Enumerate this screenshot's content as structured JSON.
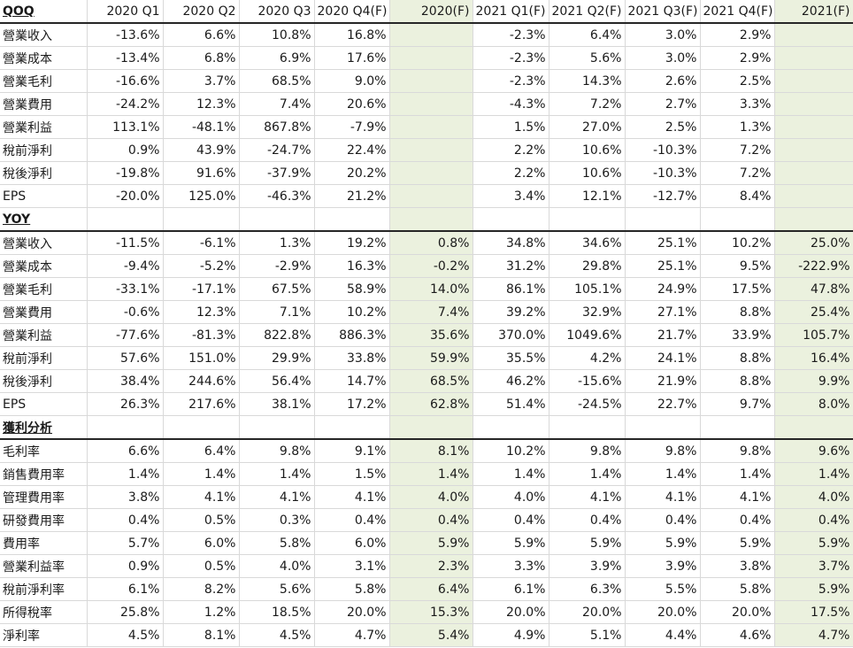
{
  "headers": [
    "QOQ",
    "2020 Q1",
    "2020 Q2",
    "2020 Q3",
    "2020 Q4(F)",
    "2020(F)",
    "2021 Q1(F)",
    "2021 Q2(F)",
    "2021 Q3(F)",
    "2021 Q4(F)",
    "2021(F)"
  ],
  "highlight_color": "#ebf1de",
  "sections": [
    {
      "rows": [
        {
          "label": "營業收入",
          "values": [
            "-13.6%",
            "6.6%",
            "10.8%",
            "16.8%",
            "",
            "-2.3%",
            "6.4%",
            "3.0%",
            "2.9%",
            ""
          ]
        },
        {
          "label": "營業成本",
          "values": [
            "-13.4%",
            "6.8%",
            "6.9%",
            "17.6%",
            "",
            "-2.3%",
            "5.6%",
            "3.0%",
            "2.9%",
            ""
          ]
        },
        {
          "label": "營業毛利",
          "values": [
            "-16.6%",
            "3.7%",
            "68.5%",
            "9.0%",
            "",
            "-2.3%",
            "14.3%",
            "2.6%",
            "2.5%",
            ""
          ]
        },
        {
          "label": "營業費用",
          "values": [
            "-24.2%",
            "12.3%",
            "7.4%",
            "20.6%",
            "",
            "-4.3%",
            "7.2%",
            "2.7%",
            "3.3%",
            ""
          ]
        },
        {
          "label": "營業利益",
          "values": [
            "113.1%",
            "-48.1%",
            "867.8%",
            "-7.9%",
            "",
            "1.5%",
            "27.0%",
            "2.5%",
            "1.3%",
            ""
          ]
        },
        {
          "label": "稅前淨利",
          "values": [
            "0.9%",
            "43.9%",
            "-24.7%",
            "22.4%",
            "",
            "2.2%",
            "10.6%",
            "-10.3%",
            "7.2%",
            ""
          ]
        },
        {
          "label": "稅後淨利",
          "values": [
            "-19.8%",
            "91.6%",
            "-37.9%",
            "20.2%",
            "",
            "2.2%",
            "10.6%",
            "-10.3%",
            "7.2%",
            ""
          ]
        },
        {
          "label": "EPS",
          "values": [
            "-20.0%",
            "125.0%",
            "-46.3%",
            "21.2%",
            "",
            "3.4%",
            "12.1%",
            "-12.7%",
            "8.4%",
            ""
          ]
        }
      ]
    },
    {
      "title": "YOY",
      "rows": [
        {
          "label": "營業收入",
          "values": [
            "-11.5%",
            "-6.1%",
            "1.3%",
            "19.2%",
            "0.8%",
            "34.8%",
            "34.6%",
            "25.1%",
            "10.2%",
            "25.0%"
          ]
        },
        {
          "label": "營業成本",
          "values": [
            "-9.4%",
            "-5.2%",
            "-2.9%",
            "16.3%",
            "-0.2%",
            "31.2%",
            "29.8%",
            "25.1%",
            "9.5%",
            "-222.9%"
          ]
        },
        {
          "label": "營業毛利",
          "values": [
            "-33.1%",
            "-17.1%",
            "67.5%",
            "58.9%",
            "14.0%",
            "86.1%",
            "105.1%",
            "24.9%",
            "17.5%",
            "47.8%"
          ]
        },
        {
          "label": "營業費用",
          "values": [
            "-0.6%",
            "12.3%",
            "7.1%",
            "10.2%",
            "7.4%",
            "39.2%",
            "32.9%",
            "27.1%",
            "8.8%",
            "25.4%"
          ]
        },
        {
          "label": "營業利益",
          "values": [
            "-77.6%",
            "-81.3%",
            "822.8%",
            "886.3%",
            "35.6%",
            "370.0%",
            "1049.6%",
            "21.7%",
            "33.9%",
            "105.7%"
          ]
        },
        {
          "label": "稅前淨利",
          "values": [
            "57.6%",
            "151.0%",
            "29.9%",
            "33.8%",
            "59.9%",
            "35.5%",
            "4.2%",
            "24.1%",
            "8.8%",
            "16.4%"
          ]
        },
        {
          "label": "稅後淨利",
          "values": [
            "38.4%",
            "244.6%",
            "56.4%",
            "14.7%",
            "68.5%",
            "46.2%",
            "-15.6%",
            "21.9%",
            "8.8%",
            "9.9%"
          ]
        },
        {
          "label": "EPS",
          "values": [
            "26.3%",
            "217.6%",
            "38.1%",
            "17.2%",
            "62.8%",
            "51.4%",
            "-24.5%",
            "22.7%",
            "9.7%",
            "8.0%"
          ]
        }
      ]
    },
    {
      "title": "獲利分析",
      "rows": [
        {
          "label": "毛利率",
          "values": [
            "6.6%",
            "6.4%",
            "9.8%",
            "9.1%",
            "8.1%",
            "10.2%",
            "9.8%",
            "9.8%",
            "9.8%",
            "9.6%"
          ]
        },
        {
          "label": "銷售費用率",
          "values": [
            "1.4%",
            "1.4%",
            "1.4%",
            "1.5%",
            "1.4%",
            "1.4%",
            "1.4%",
            "1.4%",
            "1.4%",
            "1.4%"
          ]
        },
        {
          "label": "管理費用率",
          "values": [
            "3.8%",
            "4.1%",
            "4.1%",
            "4.1%",
            "4.0%",
            "4.0%",
            "4.1%",
            "4.1%",
            "4.1%",
            "4.0%"
          ]
        },
        {
          "label": "研發費用率",
          "values": [
            "0.4%",
            "0.5%",
            "0.3%",
            "0.4%",
            "0.4%",
            "0.4%",
            "0.4%",
            "0.4%",
            "0.4%",
            "0.4%"
          ]
        },
        {
          "label": "費用率",
          "values": [
            "5.7%",
            "6.0%",
            "5.8%",
            "6.0%",
            "5.9%",
            "5.9%",
            "5.9%",
            "5.9%",
            "5.9%",
            "5.9%"
          ]
        },
        {
          "label": "營業利益率",
          "values": [
            "0.9%",
            "0.5%",
            "4.0%",
            "3.1%",
            "2.3%",
            "3.3%",
            "3.9%",
            "3.9%",
            "3.8%",
            "3.7%"
          ]
        },
        {
          "label": "稅前淨利率",
          "values": [
            "6.1%",
            "8.2%",
            "5.6%",
            "5.8%",
            "6.4%",
            "6.1%",
            "6.3%",
            "5.5%",
            "5.8%",
            "5.9%"
          ]
        },
        {
          "label": "所得稅率",
          "values": [
            "25.8%",
            "1.2%",
            "18.5%",
            "20.0%",
            "15.3%",
            "20.0%",
            "20.0%",
            "20.0%",
            "20.0%",
            "17.5%"
          ]
        },
        {
          "label": "淨利率",
          "values": [
            "4.5%",
            "8.1%",
            "4.5%",
            "4.7%",
            "5.4%",
            "4.9%",
            "5.1%",
            "4.4%",
            "4.6%",
            "4.7%"
          ]
        }
      ]
    }
  ]
}
